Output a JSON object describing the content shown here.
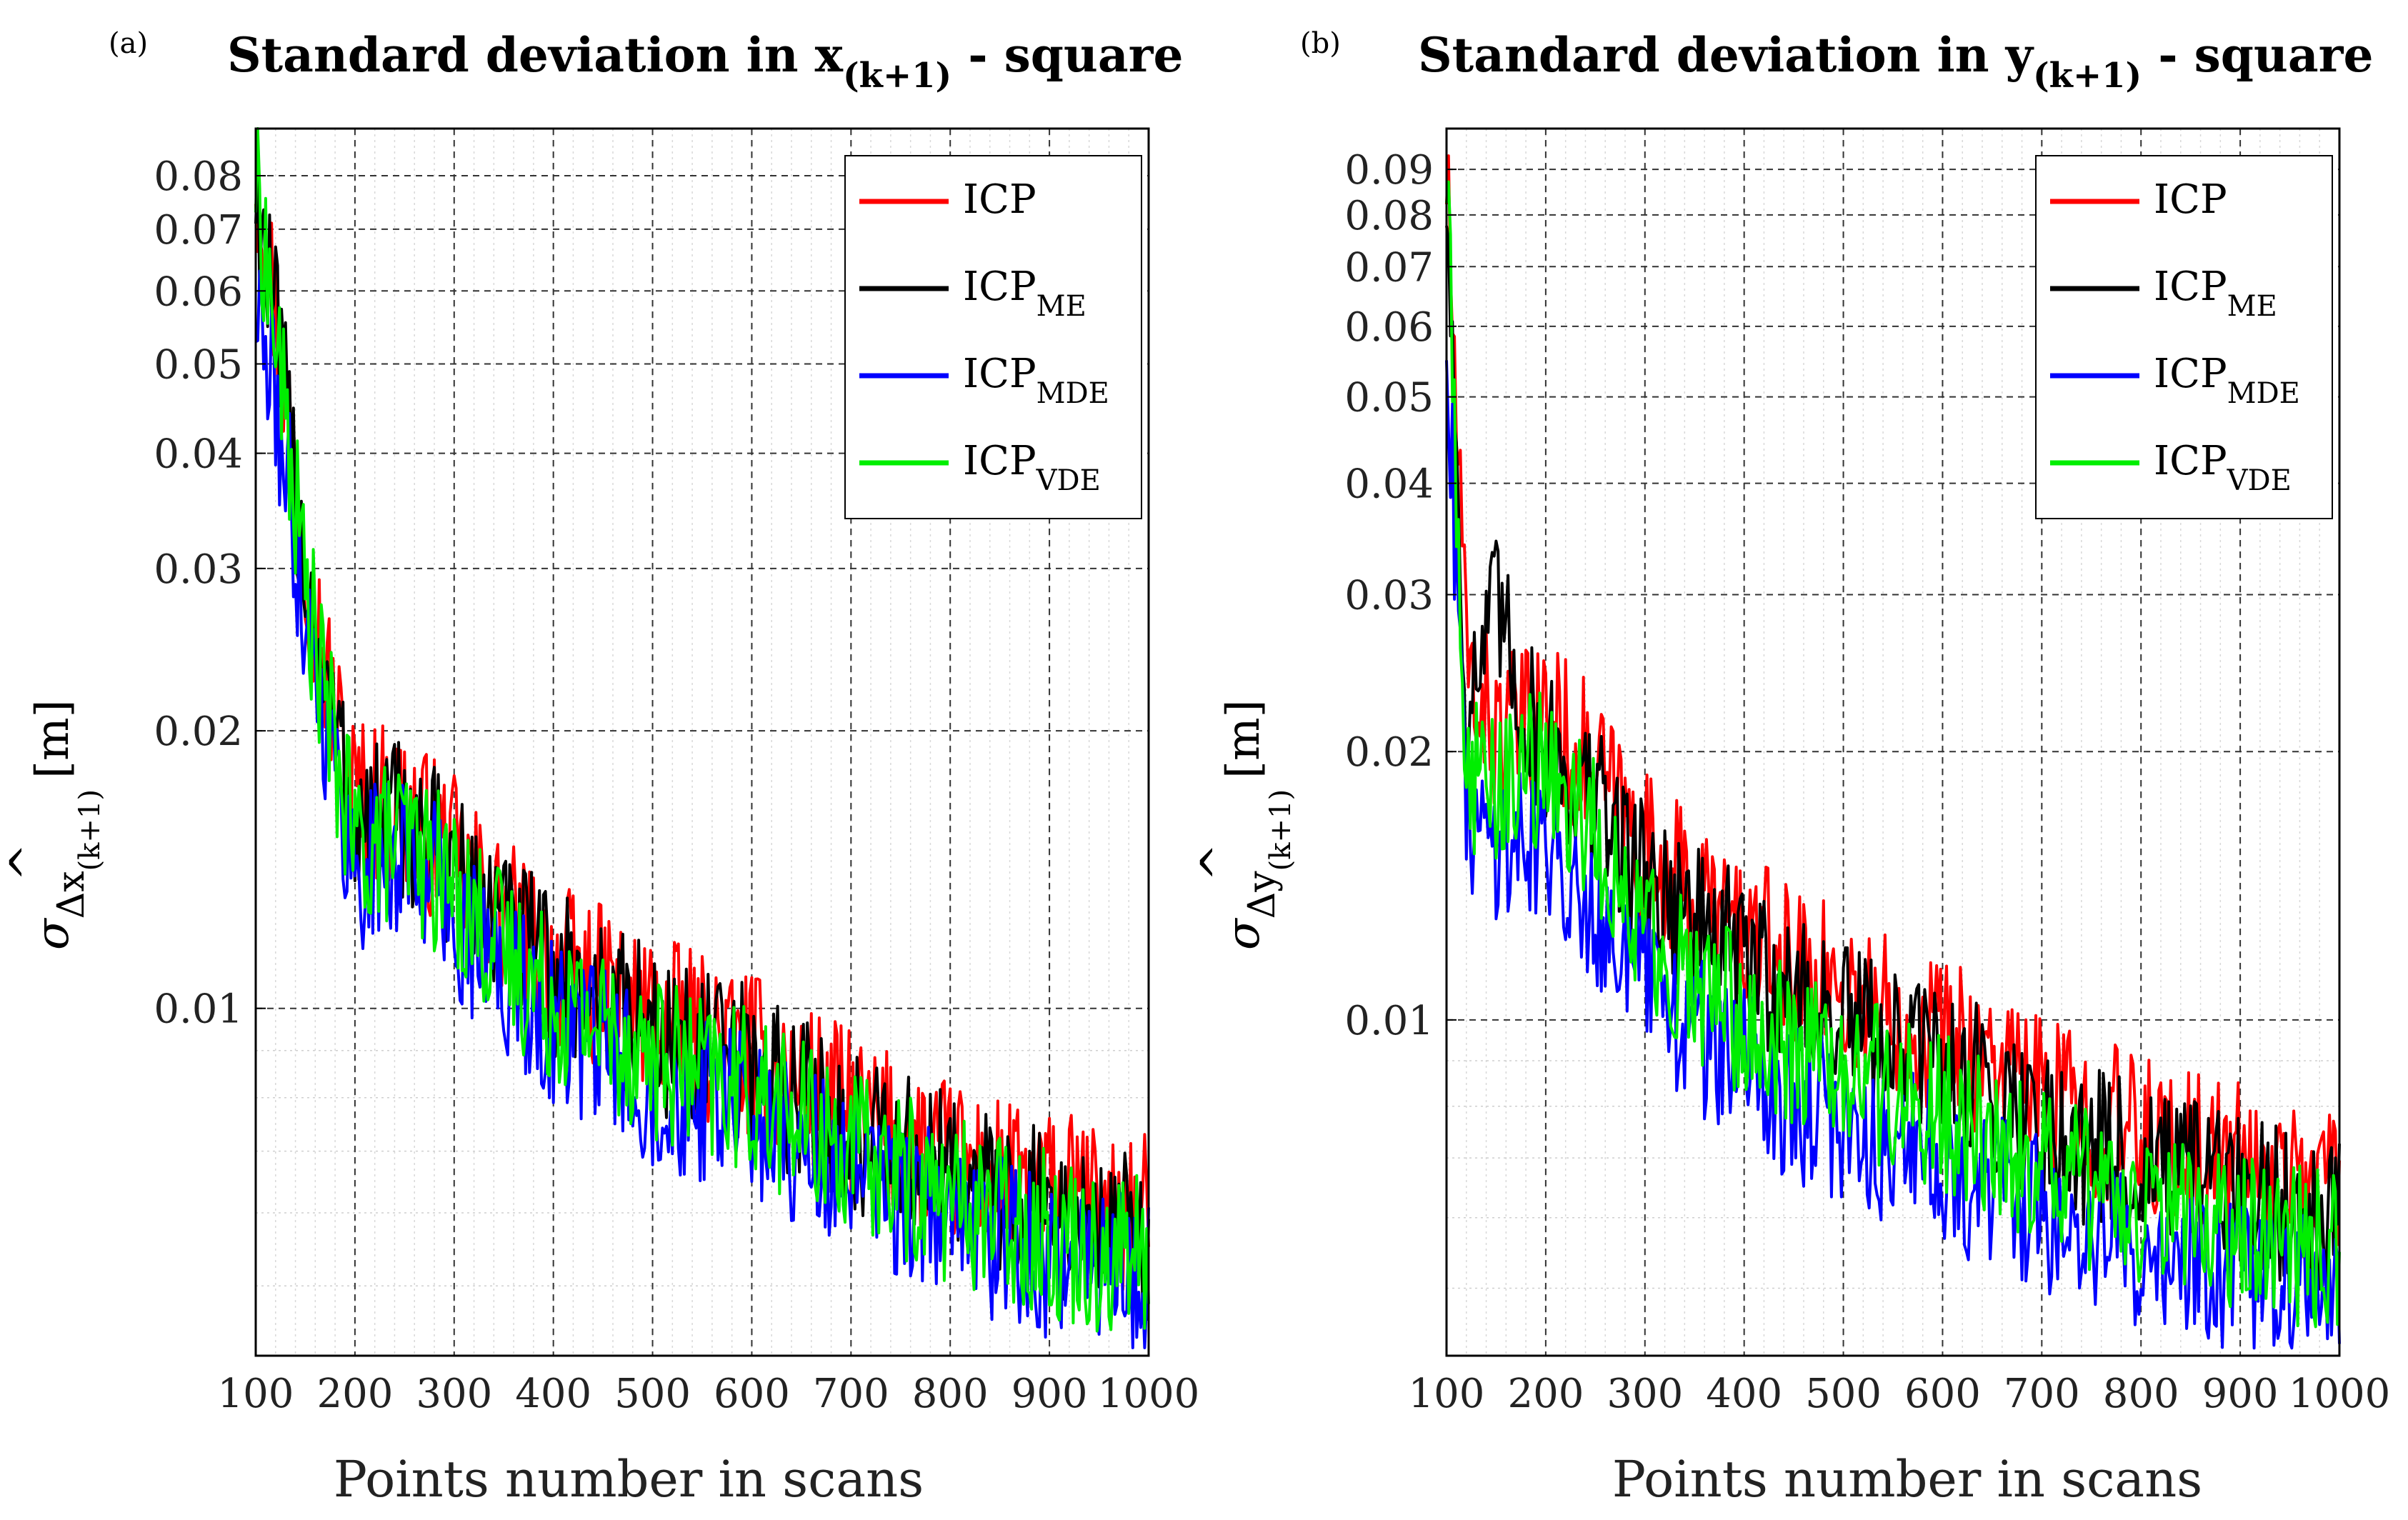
{
  "chart_data": [
    {
      "type": "line",
      "panel_label": "(a)",
      "title_main": "Standard deviation in x",
      "title_sub": "(k+1)",
      "title_tail": " - square",
      "xlabel": "Points number in scans",
      "ylabel_symbol": "σ",
      "ylabel_delta": "Δ",
      "ylabel_var": "x",
      "ylabel_hat": "^",
      "ylabel_sub": "(k+1)",
      "ylabel_unit": "[m]",
      "xlim": [
        100,
        1000
      ],
      "ylim": [
        0.0042,
        0.09
      ],
      "yscale": "log",
      "xticks": [
        "100",
        "200",
        "300",
        "400",
        "500",
        "600",
        "700",
        "800",
        "900",
        "1000"
      ],
      "yticks": [
        {
          "value": 0.01,
          "label": "0.01"
        },
        {
          "value": 0.02,
          "label": "0.02"
        },
        {
          "value": 0.03,
          "label": "0.03"
        },
        {
          "value": 0.04,
          "label": "0.04"
        },
        {
          "value": 0.05,
          "label": "0.05"
        },
        {
          "value": 0.06,
          "label": "0.06"
        },
        {
          "value": 0.07,
          "label": "0.07"
        },
        {
          "value": 0.08,
          "label": "0.08"
        }
      ],
      "legend_position": "top-right",
      "series": [
        {
          "name": "ICP",
          "sub": "",
          "color": "#ff0000",
          "x": [
            100,
            125,
            150,
            175,
            200,
            250,
            300,
            350,
            400,
            450,
            500,
            550,
            600,
            650,
            700,
            750,
            800,
            850,
            900,
            950,
            1000
          ],
          "values": [
            0.082,
            0.052,
            0.031,
            0.022,
            0.017,
            0.0165,
            0.0145,
            0.0125,
            0.0112,
            0.0105,
            0.0098,
            0.0093,
            0.0089,
            0.0083,
            0.0077,
            0.0072,
            0.0068,
            0.0065,
            0.0063,
            0.0061,
            0.0059
          ]
        },
        {
          "name": "ICP",
          "sub": "ME",
          "color": "#000000",
          "x": [
            100,
            125,
            150,
            175,
            200,
            250,
            300,
            350,
            400,
            450,
            500,
            550,
            600,
            650,
            700,
            750,
            800,
            850,
            900,
            950,
            1000
          ],
          "values": [
            0.078,
            0.05,
            0.03,
            0.021,
            0.016,
            0.016,
            0.0142,
            0.0122,
            0.0109,
            0.0102,
            0.0095,
            0.009,
            0.0086,
            0.008,
            0.0074,
            0.0069,
            0.0066,
            0.0063,
            0.006,
            0.0058,
            0.0056
          ]
        },
        {
          "name": "ICP",
          "sub": "MDE",
          "color": "#0000ff",
          "x": [
            100,
            125,
            150,
            175,
            200,
            250,
            300,
            350,
            400,
            450,
            500,
            550,
            600,
            650,
            700,
            750,
            800,
            850,
            900,
            950,
            1000
          ],
          "values": [
            0.058,
            0.042,
            0.027,
            0.019,
            0.014,
            0.0148,
            0.0128,
            0.0108,
            0.0096,
            0.009,
            0.0083,
            0.0079,
            0.0076,
            0.0071,
            0.0065,
            0.0062,
            0.0059,
            0.0056,
            0.0054,
            0.0052,
            0.0051
          ]
        },
        {
          "name": "ICP",
          "sub": "VDE",
          "color": "#00ee00",
          "x": [
            100,
            125,
            150,
            175,
            200,
            250,
            300,
            350,
            400,
            450,
            500,
            550,
            600,
            650,
            700,
            750,
            800,
            850,
            900,
            950,
            1000
          ],
          "values": [
            0.08,
            0.048,
            0.029,
            0.02,
            0.015,
            0.0152,
            0.0135,
            0.0115,
            0.0102,
            0.0096,
            0.0089,
            0.0084,
            0.0081,
            0.0075,
            0.007,
            0.0066,
            0.0062,
            0.006,
            0.0057,
            0.0055,
            0.0054
          ]
        }
      ]
    },
    {
      "type": "line",
      "panel_label": "(b)",
      "title_main": "Standard deviation in y",
      "title_sub": "(k+1)",
      "title_tail": " - square",
      "xlabel": "Points number in scans",
      "ylabel_symbol": "σ",
      "ylabel_delta": "Δ",
      "ylabel_var": "y",
      "ylabel_hat": "^",
      "ylabel_sub": "(k+1)",
      "ylabel_unit": "[m]",
      "xlim": [
        100,
        1000
      ],
      "ylim": [
        0.0042,
        0.1
      ],
      "yscale": "log",
      "xticks": [
        "100",
        "200",
        "300",
        "400",
        "500",
        "600",
        "700",
        "800",
        "900",
        "1000"
      ],
      "yticks": [
        {
          "value": 0.01,
          "label": "0.01"
        },
        {
          "value": 0.02,
          "label": "0.02"
        },
        {
          "value": 0.03,
          "label": "0.03"
        },
        {
          "value": 0.04,
          "label": "0.04"
        },
        {
          "value": 0.05,
          "label": "0.05"
        },
        {
          "value": 0.06,
          "label": "0.06"
        },
        {
          "value": 0.07,
          "label": "0.07"
        },
        {
          "value": 0.08,
          "label": "0.08"
        },
        {
          "value": 0.09,
          "label": "0.09"
        }
      ],
      "legend_position": "top-right",
      "series": [
        {
          "name": "ICP",
          "sub": "",
          "color": "#ff0000",
          "x": [
            100,
            120,
            150,
            175,
            200,
            250,
            300,
            350,
            400,
            450,
            500,
            550,
            600,
            650,
            700,
            750,
            800,
            850,
            900,
            950,
            1000
          ],
          "values": [
            0.09,
            0.025,
            0.021,
            0.021,
            0.022,
            0.019,
            0.0155,
            0.0138,
            0.0125,
            0.0115,
            0.0108,
            0.0102,
            0.0097,
            0.009,
            0.0083,
            0.0078,
            0.0074,
            0.0071,
            0.0069,
            0.0067,
            0.0066
          ]
        },
        {
          "name": "ICP",
          "sub": "ME",
          "color": "#000000",
          "x": [
            100,
            120,
            150,
            175,
            200,
            250,
            300,
            350,
            400,
            450,
            500,
            550,
            600,
            650,
            700,
            750,
            800,
            850,
            900,
            950,
            1000
          ],
          "values": [
            0.085,
            0.022,
            0.029,
            0.023,
            0.02,
            0.0175,
            0.0145,
            0.013,
            0.0117,
            0.0107,
            0.01,
            0.0094,
            0.009,
            0.0083,
            0.0077,
            0.0072,
            0.0069,
            0.0066,
            0.0064,
            0.0062,
            0.0061
          ]
        },
        {
          "name": "ICP",
          "sub": "MDE",
          "color": "#0000ff",
          "x": [
            100,
            120,
            150,
            175,
            200,
            250,
            300,
            350,
            400,
            450,
            500,
            550,
            600,
            650,
            700,
            750,
            800,
            850,
            900,
            950,
            1000
          ],
          "values": [
            0.06,
            0.017,
            0.016,
            0.016,
            0.016,
            0.0135,
            0.011,
            0.0097,
            0.0088,
            0.0081,
            0.0076,
            0.0072,
            0.0069,
            0.0064,
            0.006,
            0.0057,
            0.0055,
            0.0053,
            0.0051,
            0.005,
            0.0049
          ]
        },
        {
          "name": "ICP",
          "sub": "VDE",
          "color": "#00ee00",
          "x": [
            100,
            120,
            150,
            175,
            200,
            250,
            300,
            350,
            400,
            450,
            500,
            550,
            600,
            650,
            700,
            750,
            800,
            850,
            900,
            950,
            1000
          ],
          "values": [
            0.09,
            0.019,
            0.018,
            0.019,
            0.019,
            0.016,
            0.0125,
            0.011,
            0.01,
            0.0093,
            0.0088,
            0.0083,
            0.0079,
            0.0073,
            0.0068,
            0.0064,
            0.0061,
            0.0059,
            0.0057,
            0.0056,
            0.0055
          ]
        }
      ]
    }
  ]
}
